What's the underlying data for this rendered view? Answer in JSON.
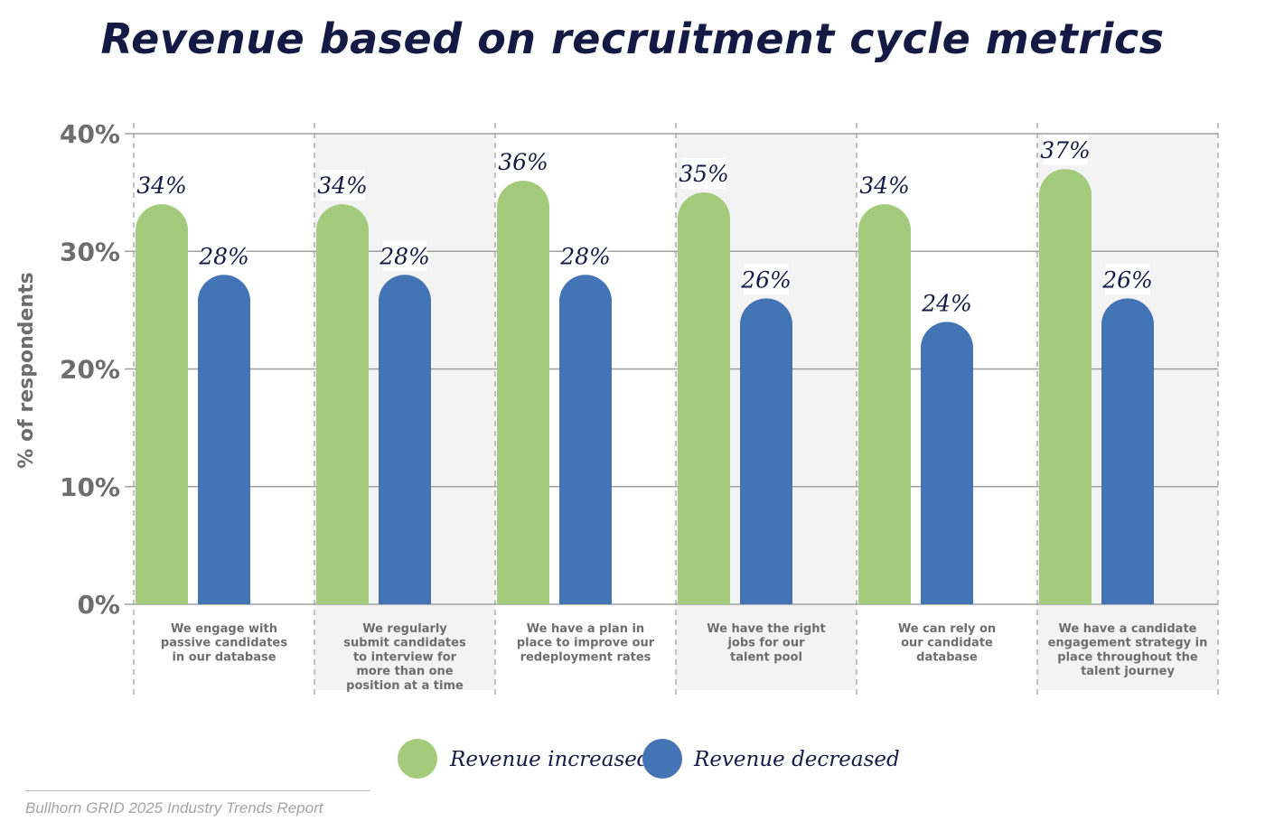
{
  "title": "Revenue based on recruitment cycle metrics",
  "source": "Bullhorn GRID 2025 Industry Trends Report",
  "colors": {
    "increased": "#a4cb7c",
    "decreased": "#4375b6",
    "title": "#151a45",
    "axis": "#6d6d6d",
    "band": "#f3f3f3"
  },
  "chart_data": {
    "type": "bar",
    "title": "Revenue based on recruitment cycle metrics",
    "xlabel": "",
    "ylabel": "% of respondents",
    "ylim": [
      0,
      40
    ],
    "yticks": [
      "0%",
      "10%",
      "20%",
      "30%",
      "40%"
    ],
    "grid": true,
    "legend_position": "bottom",
    "categories": [
      [
        "We engage with",
        "passive candidates",
        "in our database"
      ],
      [
        "We regularly",
        "submit candidates",
        "to interview for",
        "more than one",
        "position at a time"
      ],
      [
        "We have a plan in",
        "place to improve our",
        "redeployment rates"
      ],
      [
        "We have the right",
        "jobs for our",
        "talent pool"
      ],
      [
        "We can rely on",
        "our candidate",
        "database"
      ],
      [
        "We have a candidate",
        "engagement strategy in",
        "place throughout the",
        "talent journey"
      ]
    ],
    "series": [
      {
        "name": "Revenue increased",
        "values": [
          34,
          34,
          36,
          35,
          34,
          37
        ],
        "labels": [
          "34%",
          "34%",
          "36%",
          "35%",
          "34%",
          "37%"
        ]
      },
      {
        "name": "Revenue decreased",
        "values": [
          28,
          28,
          28,
          26,
          24,
          26
        ],
        "labels": [
          "28%",
          "28%",
          "28%",
          "26%",
          "24%",
          "26%"
        ]
      }
    ]
  }
}
